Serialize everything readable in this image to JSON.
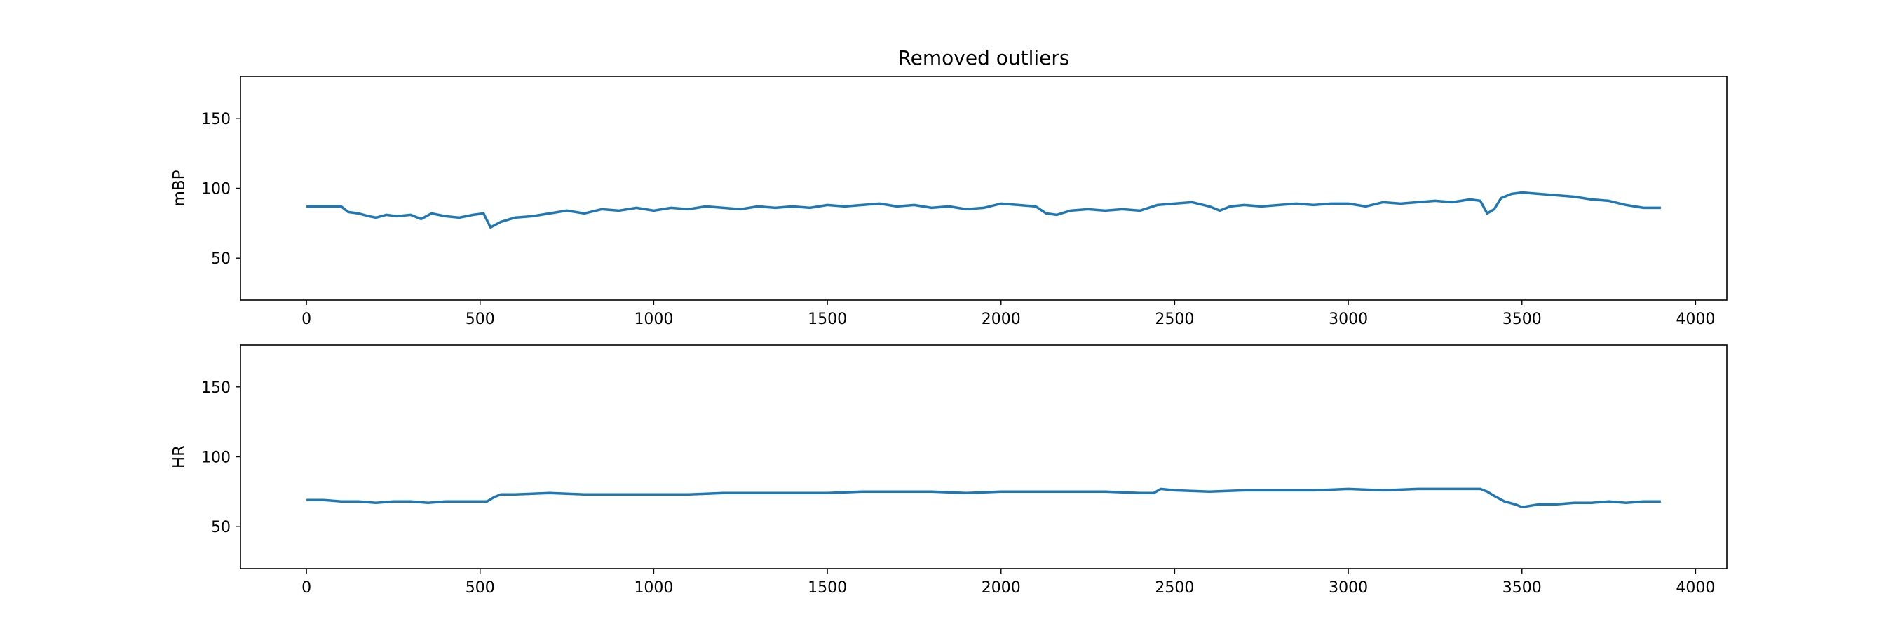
{
  "colors": {
    "series": "#1f77b4",
    "axes": "#000000",
    "background": "#ffffff"
  },
  "chart_data": [
    {
      "type": "line",
      "title": "Removed outliers",
      "xlabel": "",
      "ylabel": "mBP",
      "xlim": [
        -190,
        4090
      ],
      "ylim": [
        20,
        180
      ],
      "xticks": [
        0,
        500,
        1000,
        1500,
        2000,
        2500,
        3000,
        3500,
        4000
      ],
      "yticks": [
        50,
        100,
        150
      ],
      "grid": false,
      "series": [
        {
          "x": [
            0,
            50,
            100,
            120,
            150,
            180,
            200,
            230,
            260,
            300,
            330,
            360,
            400,
            440,
            480,
            510,
            530,
            560,
            600,
            650,
            700,
            750,
            800,
            850,
            900,
            950,
            1000,
            1050,
            1100,
            1150,
            1200,
            1250,
            1300,
            1350,
            1400,
            1450,
            1500,
            1550,
            1600,
            1650,
            1700,
            1750,
            1800,
            1850,
            1900,
            1950,
            2000,
            2050,
            2100,
            2130,
            2160,
            2200,
            2250,
            2300,
            2350,
            2400,
            2450,
            2500,
            2550,
            2600,
            2630,
            2660,
            2700,
            2750,
            2800,
            2850,
            2900,
            2950,
            3000,
            3050,
            3100,
            3150,
            3200,
            3250,
            3300,
            3350,
            3380,
            3400,
            3420,
            3440,
            3470,
            3500,
            3550,
            3600,
            3650,
            3700,
            3750,
            3800,
            3850,
            3900
          ],
          "values": [
            87,
            87,
            87,
            83,
            82,
            80,
            79,
            81,
            80,
            81,
            78,
            82,
            80,
            79,
            81,
            82,
            72,
            76,
            79,
            80,
            82,
            84,
            82,
            85,
            84,
            86,
            84,
            86,
            85,
            87,
            86,
            85,
            87,
            86,
            87,
            86,
            88,
            87,
            88,
            89,
            87,
            88,
            86,
            87,
            85,
            86,
            89,
            88,
            87,
            82,
            81,
            84,
            85,
            84,
            85,
            84,
            88,
            89,
            90,
            87,
            84,
            87,
            88,
            87,
            88,
            89,
            88,
            89,
            89,
            87,
            90,
            89,
            90,
            91,
            90,
            92,
            91,
            82,
            85,
            93,
            96,
            97,
            96,
            95,
            94,
            92,
            91,
            88,
            86,
            86
          ]
        }
      ]
    },
    {
      "type": "line",
      "title": "",
      "xlabel": "",
      "ylabel": "HR",
      "xlim": [
        -190,
        4090
      ],
      "ylim": [
        20,
        180
      ],
      "xticks": [
        0,
        500,
        1000,
        1500,
        2000,
        2500,
        3000,
        3500,
        4000
      ],
      "yticks": [
        50,
        100,
        150
      ],
      "grid": false,
      "series": [
        {
          "x": [
            0,
            50,
            100,
            150,
            200,
            250,
            300,
            350,
            400,
            450,
            500,
            520,
            540,
            560,
            600,
            700,
            800,
            900,
            1000,
            1100,
            1200,
            1300,
            1400,
            1500,
            1600,
            1700,
            1800,
            1900,
            2000,
            2100,
            2200,
            2300,
            2400,
            2440,
            2460,
            2500,
            2600,
            2700,
            2800,
            2900,
            3000,
            3100,
            3200,
            3300,
            3350,
            3380,
            3400,
            3420,
            3450,
            3480,
            3500,
            3550,
            3600,
            3650,
            3700,
            3750,
            3800,
            3850,
            3900
          ],
          "values": [
            69,
            69,
            68,
            68,
            67,
            68,
            68,
            67,
            68,
            68,
            68,
            68,
            71,
            73,
            73,
            74,
            73,
            73,
            73,
            73,
            74,
            74,
            74,
            74,
            75,
            75,
            75,
            74,
            75,
            75,
            75,
            75,
            74,
            74,
            77,
            76,
            75,
            76,
            76,
            76,
            77,
            76,
            77,
            77,
            77,
            77,
            75,
            72,
            68,
            66,
            64,
            66,
            66,
            67,
            67,
            68,
            67,
            68,
            68
          ]
        }
      ]
    }
  ]
}
